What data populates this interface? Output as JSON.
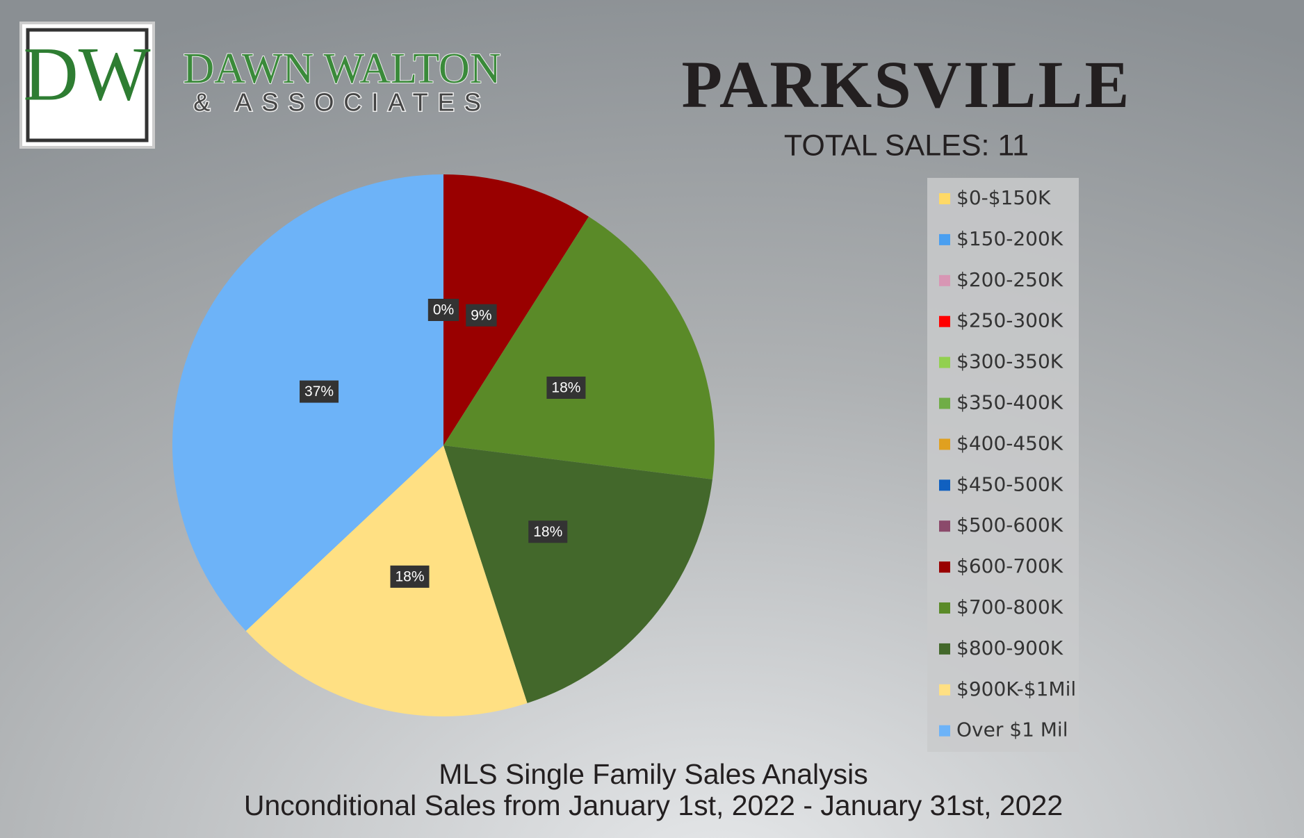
{
  "logo": {
    "initials": "DW",
    "name": "DAWN WALTON",
    "tagline": "& ASSOCIATES"
  },
  "chart_data": {
    "type": "pie",
    "title": "PARKSVILLE",
    "subtitle": "TOTAL SALES: 11",
    "notes": [
      "MLS Single Family Sales Analysis",
      "Unconditional Sales from January 1st, 2022 - January 31st, 2022"
    ],
    "categories": [
      "$0-$150K",
      "$150-200K",
      "$200-250K",
      "$250-300K",
      "$300-350K",
      "$350-400K",
      "$400-450K",
      "$450-500K",
      "$500-600K",
      "$600-700K",
      "$700-800K",
      "$800-900K",
      "$900K-$1Mil",
      "Over $1 Mil"
    ],
    "values": [
      0,
      0,
      0,
      0,
      0,
      0,
      0,
      0,
      0,
      9,
      18,
      18,
      18,
      37
    ],
    "value_labels": [
      null,
      null,
      null,
      null,
      null,
      null,
      null,
      null,
      "0%",
      "9%",
      "18%",
      "18%",
      "18%",
      "37%"
    ],
    "colors": [
      "#ffd966",
      "#4a9ff0",
      "#d896b4",
      "#ff0000",
      "#92d050",
      "#70ad47",
      "#e0a020",
      "#1060c0",
      "#8b4a6b",
      "#990000",
      "#5a8a28",
      "#43682b",
      "#ffe083",
      "#6db3f8"
    ],
    "legend": "right"
  }
}
